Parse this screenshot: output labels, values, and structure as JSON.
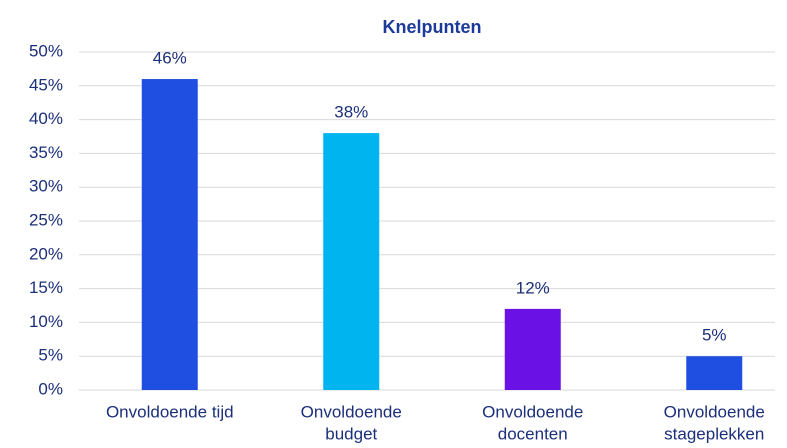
{
  "chart_data": {
    "type": "bar",
    "title": "Knelpunten",
    "categories": [
      [
        "Onvoldoende tijd"
      ],
      [
        "Onvoldoende",
        "budget"
      ],
      [
        "Onvoldoende",
        "docenten"
      ],
      [
        "Onvoldoende",
        "stageplekken"
      ]
    ],
    "values": [
      46,
      38,
      12,
      5
    ],
    "value_labels": [
      "46%",
      "38%",
      "12%",
      "5%"
    ],
    "colors": [
      "#1f4fe0",
      "#00b4f0",
      "#6a12e6",
      "#1f4fe0"
    ],
    "ylim": [
      0,
      50
    ],
    "yticks": [
      {
        "value": 0,
        "label": "0%"
      },
      {
        "value": 5,
        "label": "5%"
      },
      {
        "value": 10,
        "label": "10%"
      },
      {
        "value": 15,
        "label": "15%"
      },
      {
        "value": 20,
        "label": "20%"
      },
      {
        "value": 25,
        "label": "25%"
      },
      {
        "value": 30,
        "label": "30%"
      },
      {
        "value": 35,
        "label": "35%"
      },
      {
        "value": 40,
        "label": "40%"
      },
      {
        "value": 45,
        "label": "45%"
      },
      {
        "value": 50,
        "label": "50%"
      }
    ],
    "grid": true
  }
}
